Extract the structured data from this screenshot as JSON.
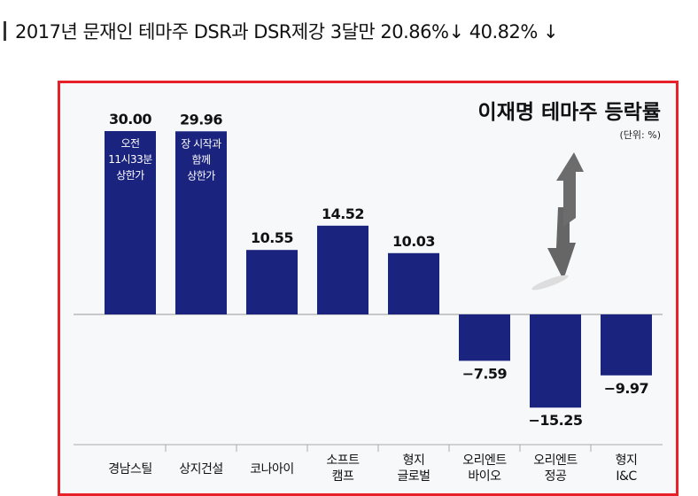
{
  "heading": "2017년 문재인 테마주 DSR과 DSR제강 3달만 20.86%↓ 40.82% ↓",
  "chart_data": {
    "type": "bar",
    "title": "이재명 테마주 등락률",
    "unit_label": "(단위: %)",
    "categories": [
      [
        "경남스틸"
      ],
      [
        "상지건설"
      ],
      [
        "코나아이"
      ],
      [
        "소프트",
        "캠프"
      ],
      [
        "형지",
        "글로벌"
      ],
      [
        "오리엔트",
        "바이오"
      ],
      [
        "오리엔트",
        "정공"
      ],
      [
        "형지",
        "I&C"
      ]
    ],
    "values": [
      30.0,
      29.96,
      10.55,
      14.52,
      10.03,
      -7.59,
      -15.25,
      -9.97
    ],
    "value_labels": [
      "30.00",
      "29.96",
      "10.55",
      "14.52",
      "10.03",
      "−7.59",
      "−15.25",
      "−9.97"
    ],
    "bar_annotations": [
      [
        "오전",
        "11시33분",
        "상한가"
      ],
      [
        "장 시작과",
        "함께",
        "상한가"
      ],
      [],
      [],
      [],
      [],
      [],
      []
    ],
    "ylim": [
      -21,
      32
    ],
    "bar_color": "#1a237e",
    "grid": false
  }
}
